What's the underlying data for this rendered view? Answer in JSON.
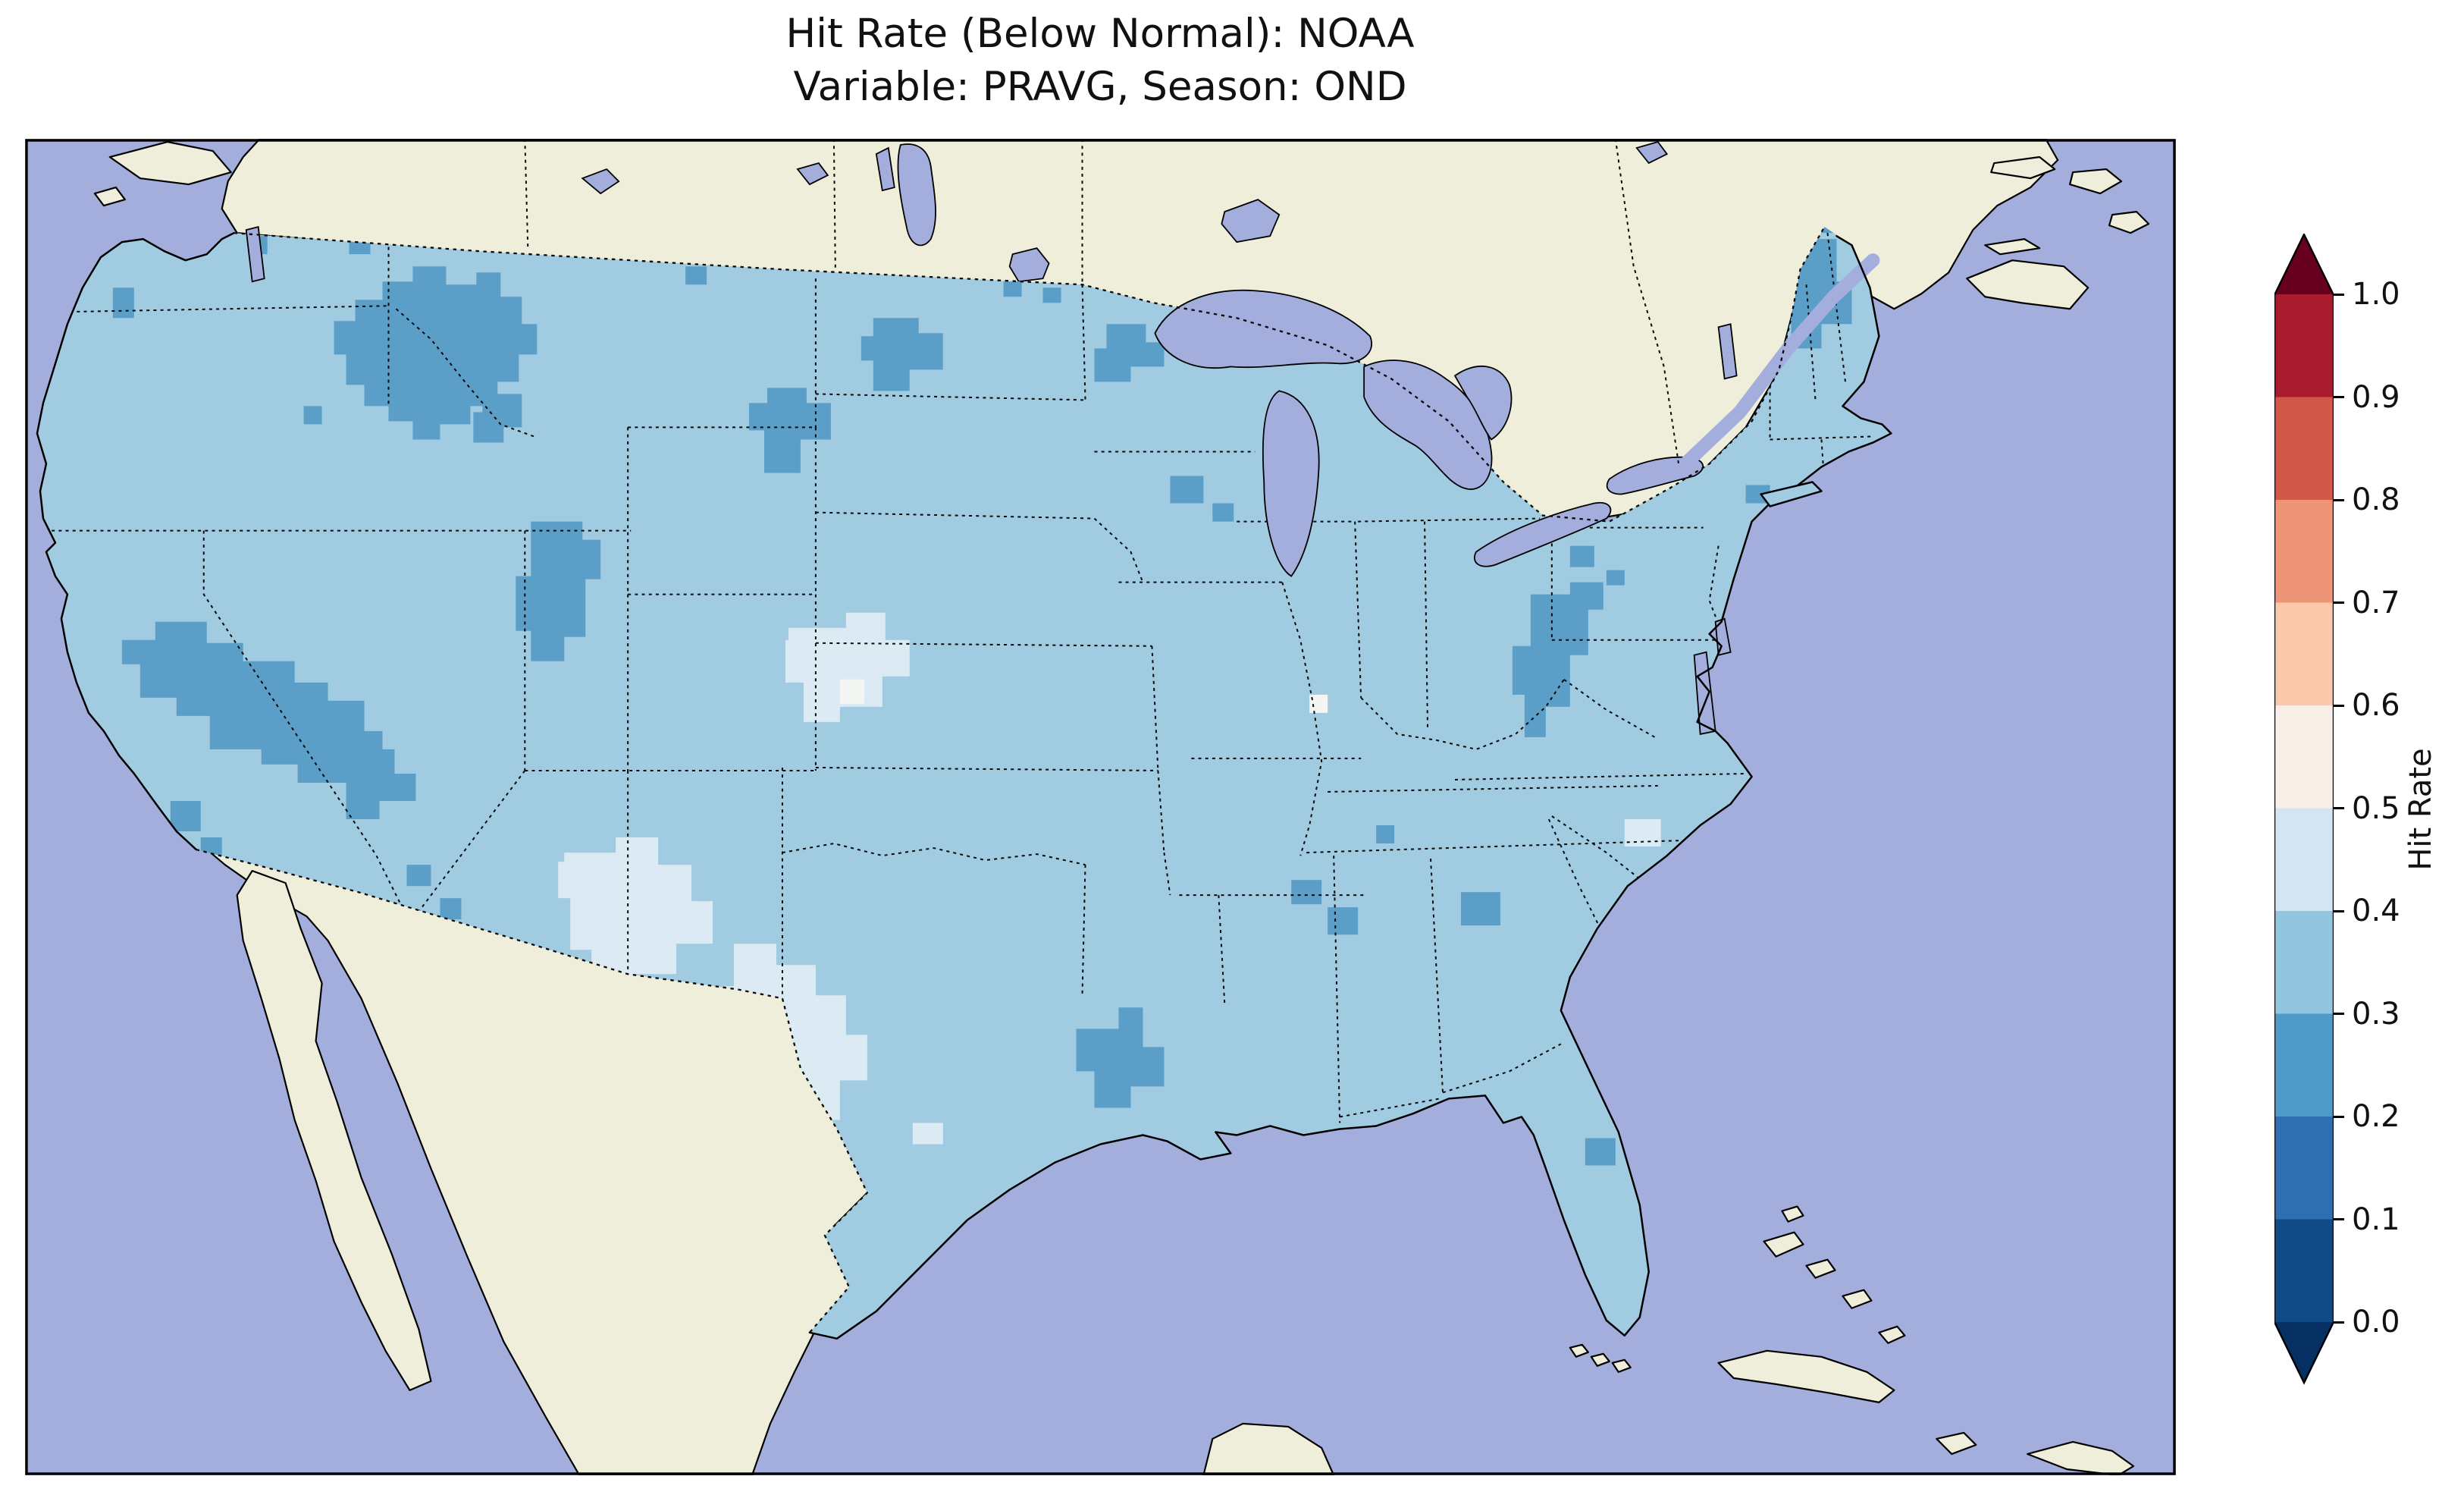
{
  "figure": {
    "title_line1": "Hit Rate (Below Normal): NOAA",
    "title_line2": "Variable: PRAVG, Season: OND"
  },
  "colorbar": {
    "label": "Hit Rate",
    "ticks_top_to_bottom": [
      "1.0",
      "0.9",
      "0.8",
      "0.7",
      "0.6",
      "0.5",
      "0.4",
      "0.3",
      "0.2",
      "0.1",
      "0.0"
    ],
    "segment_colors_bottom_to_top": [
      "#053061",
      "#124a86",
      "#2d6fb0",
      "#4f9bc7",
      "#92c5de",
      "#d2e5f0",
      "#f9eee7",
      "#fac8ab",
      "#ed9576",
      "#d25849",
      "#a91c30",
      "#67001f"
    ],
    "extend": "both"
  },
  "map": {
    "palette": {
      "ocean": "#a3aedd",
      "land": "#efeeda",
      "base": "#a0cbe0",
      "dark": "#5b9fc9",
      "light": "#dcebf3",
      "near_white": "#f4f6f4"
    },
    "dominant_hit_rate_bin": "0.3-0.4",
    "darker_bin": "0.2-0.3",
    "lighter_bin": "0.4-0.5",
    "notable_dark_regions": [
      "Idaho-Montana-Wyoming Rockies",
      "Utah",
      "California-Nevada-Arizona",
      "western Washington",
      "South Dakota",
      "central Dakotas",
      "Minnesota",
      "Wisconsin spots",
      "Ohio Valley-West Virginia",
      "New England-Maine",
      "New York City area",
      "Louisiana",
      "Mississippi-Alabama spots",
      "Georgia spot",
      "Florida spot"
    ],
    "notable_light_regions": [
      "western Kansas-eastern Colorado",
      "eastern New Mexico-Texas Panhandle",
      "west Texas",
      "coastal South Carolina",
      "Florida Panhandle dots",
      "Missouri dot"
    ]
  },
  "chart_data": {
    "type": "heatmap",
    "title": "Hit Rate (Below Normal): NOAA\nVariable: PRAVG, Season: OND",
    "region": "Contiguous United States",
    "colorbar_label": "Hit Rate",
    "colorbar_ticks": [
      0.0,
      0.1,
      0.2,
      0.3,
      0.4,
      0.5,
      0.6,
      0.7,
      0.8,
      0.9,
      1.0
    ],
    "colorbar_range": [
      0.0,
      1.0
    ],
    "colormap": "RdBu_r (blue low, red high), extend both",
    "value_summary": "Most of CONUS in 0.3-0.4 bin; patches of 0.2-0.3 over N. Rockies, Utah, S. California/Arizona, Dakotas, Minnesota, Ohio Valley, New England, Louisiana; 0.4-0.5 over W. Kansas/E. Colorado, E. New Mexico, W. Texas; tiny 0.5-0.6 spots in Missouri, Kansas, Florida Panhandle"
  }
}
